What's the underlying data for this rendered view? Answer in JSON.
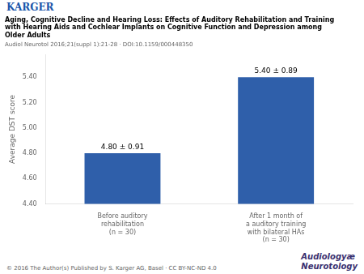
{
  "chart_data": {
    "type": "bar",
    "title": [
      "Aging, Cognitive Decline and Hearing Loss: Effects of Auditory Rehabilitation and Training",
      "with Hearing Aids and Cochlear Implants on Cognitive Function and Depression among",
      "Older Adults"
    ],
    "subtitle": "Audiol Neurotol 2016;21(suppl 1):21-28 · DOI:10.1159/000448350",
    "annotations": [
      "KARGER",
      "© 2016 The Author(s) Published by S. Karger AG, Basel · CC BY-NC-ND 4.0",
      "Audiologyæ",
      "Neurotology"
    ],
    "categories": [
      "Before auditory\nrehabilitation\n(n = 30)",
      "After 1 month of\na auditory training\nwith bilateral HAs\n(n = 30)"
    ],
    "values": [
      4.8,
      5.4
    ],
    "value_labels": [
      "4.80 ± 0.91",
      "5.40 ± 0.89"
    ],
    "data_labels": true,
    "ylabel": "Average DST score",
    "ylim": [
      4.4,
      5.58
    ],
    "yticks": [
      {
        "value": 4.4,
        "label": "4.40"
      },
      {
        "value": 4.6,
        "label": "4.60"
      },
      {
        "value": 4.8,
        "label": "4.80"
      },
      {
        "value": 5.0,
        "label": "5.00"
      },
      {
        "value": 5.2,
        "label": "5.20"
      },
      {
        "value": 5.4,
        "label": "5.40"
      }
    ],
    "color": "#2f5faa",
    "grid": false
  }
}
